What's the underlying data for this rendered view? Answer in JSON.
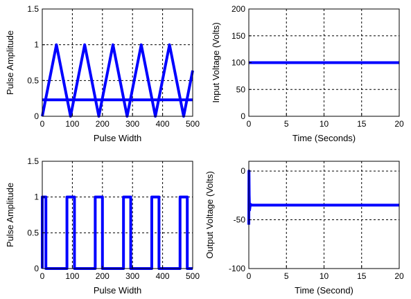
{
  "colors": {
    "line": "#0000ff",
    "grid": "#000000",
    "frame": "#000000",
    "background": "#ffffff"
  },
  "chart_data": [
    {
      "type": "line",
      "position": "top-left",
      "title": "",
      "xlabel": "Pulse Width",
      "ylabel": "Pulse Amplitude",
      "xlim": [
        0,
        500
      ],
      "ylim": [
        0,
        1.5
      ],
      "xticks": [
        "0",
        "100",
        "200",
        "300",
        "400",
        "500"
      ],
      "yticks": [
        "0",
        "0.5",
        "1",
        "1.5"
      ],
      "grid": true,
      "series": [
        {
          "kind": "triangle-wave",
          "x": [
            0,
            47,
            94,
            141,
            188,
            235,
            282,
            329,
            376,
            423,
            470,
            500
          ],
          "y": [
            0,
            1,
            0,
            1,
            0,
            1,
            0,
            1,
            0,
            1,
            0,
            0.64
          ]
        },
        {
          "kind": "constant",
          "x": [
            0,
            500
          ],
          "y": [
            0.23,
            0.23
          ]
        }
      ]
    },
    {
      "type": "line",
      "position": "top-right",
      "title": "",
      "xlabel": "Time (Seconds)",
      "ylabel": "Input Voltage (Volts)",
      "xlim": [
        0,
        20
      ],
      "ylim": [
        0,
        200
      ],
      "xticks": [
        "0",
        "5",
        "10",
        "15",
        "20"
      ],
      "yticks": [
        "0",
        "50",
        "100",
        "150",
        "200"
      ],
      "grid": true,
      "series": [
        {
          "kind": "constant",
          "x": [
            0,
            20
          ],
          "y": [
            100,
            100
          ]
        }
      ]
    },
    {
      "type": "line",
      "position": "bottom-left",
      "title": "",
      "xlabel": "Pulse Width",
      "ylabel": "Pulse Amplitude",
      "xlim": [
        0,
        500
      ],
      "ylim": [
        0,
        1.5
      ],
      "xticks": [
        "0",
        "100",
        "200",
        "300",
        "400",
        "500"
      ],
      "yticks": [
        "0",
        "0.5",
        "1",
        "1.5"
      ],
      "grid": true,
      "series": [
        {
          "kind": "pwm",
          "x": [
            0,
            0,
            12,
            12,
            82,
            82,
            107,
            107,
            176,
            176,
            200,
            200,
            270,
            270,
            294,
            294,
            364,
            364,
            388,
            388,
            458,
            458,
            482,
            482,
            500
          ],
          "y": [
            0,
            1,
            1,
            0,
            0,
            1,
            1,
            0,
            0,
            1,
            1,
            0,
            0,
            1,
            1,
            0,
            0,
            1,
            1,
            0,
            0,
            1,
            1,
            0,
            0
          ]
        }
      ]
    },
    {
      "type": "line",
      "position": "bottom-right",
      "title": "",
      "xlabel": "Time (Second)",
      "ylabel": "Output Voltage (Volts)",
      "xlim": [
        0,
        20
      ],
      "ylim": [
        -100,
        10
      ],
      "xticks": [
        "0",
        "5",
        "10",
        "15",
        "20"
      ],
      "yticks": [
        "-100",
        "-50",
        "0"
      ],
      "grid": true,
      "series": [
        {
          "kind": "step-response",
          "x": [
            0,
            0.02,
            0.05,
            0.1,
            0.2,
            0.4,
            20
          ],
          "y": [
            -55,
            0,
            -25,
            -40,
            -34,
            -35,
            -35
          ]
        }
      ]
    }
  ]
}
